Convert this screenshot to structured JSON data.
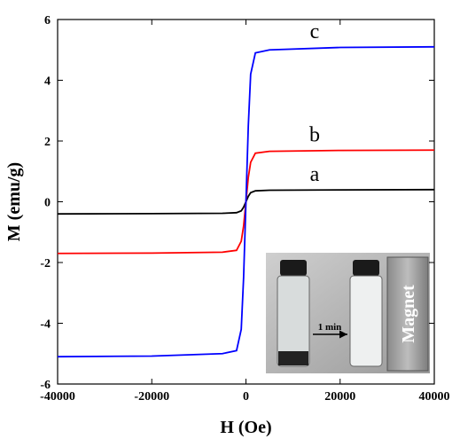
{
  "chart_data": {
    "type": "line",
    "x_label": "H (Oe)",
    "y_label": "M (emu/g)",
    "x": [
      -40000,
      -20000,
      -5000,
      -2000,
      -1000,
      -500,
      0,
      500,
      1000,
      2000,
      5000,
      20000,
      40000
    ],
    "series": [
      {
        "name": "a",
        "color": "#000000",
        "values": [
          -0.4,
          -0.39,
          -0.38,
          -0.36,
          -0.3,
          -0.18,
          0,
          0.18,
          0.3,
          0.36,
          0.38,
          0.39,
          0.4
        ]
      },
      {
        "name": "b",
        "color": "#ff0000",
        "values": [
          -1.7,
          -1.69,
          -1.66,
          -1.6,
          -1.3,
          -0.8,
          0,
          0.8,
          1.3,
          1.6,
          1.66,
          1.69,
          1.7
        ]
      },
      {
        "name": "c",
        "color": "#0000ff",
        "values": [
          -5.1,
          -5.08,
          -5.0,
          -4.9,
          -4.2,
          -2.5,
          0,
          2.5,
          4.2,
          4.9,
          5.0,
          5.08,
          5.1
        ]
      }
    ],
    "xlim": [
      -40000,
      40000
    ],
    "xticks": [
      -40000,
      -20000,
      0,
      20000,
      40000
    ],
    "ylim": [
      -6,
      6
    ],
    "yticks": [
      -6,
      -4,
      -2,
      0,
      2,
      4,
      6
    ],
    "inset_labels": [
      "1 min",
      "Magnet"
    ]
  }
}
